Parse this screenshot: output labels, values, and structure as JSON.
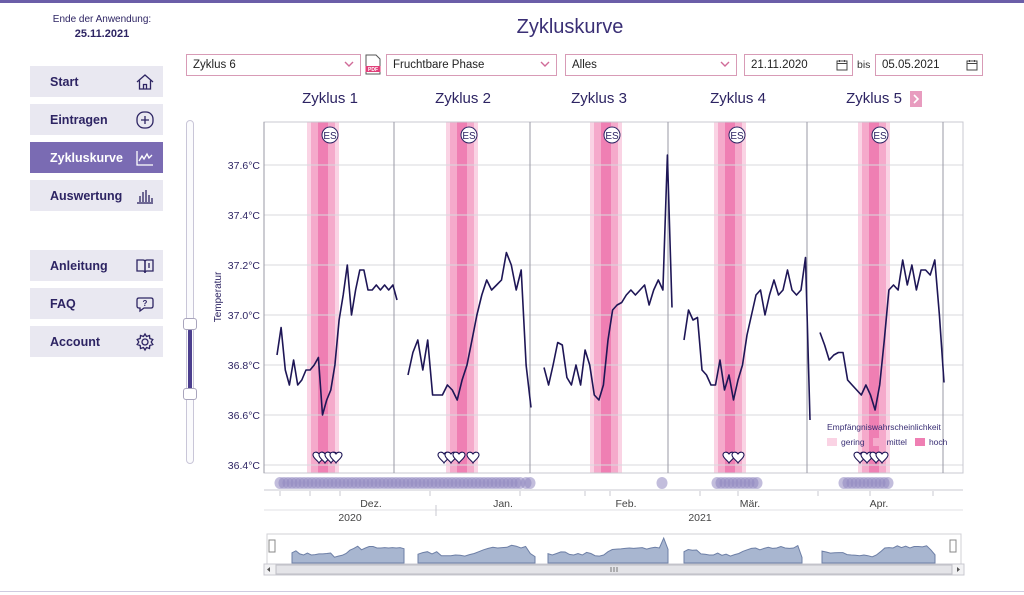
{
  "sidebar": {
    "expiry_label": "Ende der Anwendung:",
    "expiry_date": "25.11.2021",
    "items": [
      {
        "label": "Start",
        "icon": "home-icon"
      },
      {
        "label": "Eintragen",
        "icon": "plus-circle-icon"
      },
      {
        "label": "Zykluskurve",
        "icon": "chart-line-icon"
      },
      {
        "label": "Auswertung",
        "icon": "bar-chart-icon"
      },
      {
        "label": "Anleitung",
        "icon": "book-icon"
      },
      {
        "label": "FAQ",
        "icon": "question-bubble-icon"
      },
      {
        "label": "Account",
        "icon": "gear-icon"
      }
    ]
  },
  "header": {
    "title": "Zykluskurve",
    "cycle_select": "Zyklus 6",
    "phase_select": "Fruchtbare Phase",
    "filter_select": "Alles",
    "date_from": "21.11.2020",
    "bis_label": "bis",
    "date_to": "05.05.2021"
  },
  "colors": {
    "accent": "#7a6bb3",
    "curve": "#1e1656",
    "fertile_high": "#ef7fb3",
    "fertile_mid": "#f5aacb",
    "fertile_low": "#fad3e4"
  },
  "chart_data": {
    "type": "line",
    "ylabel": "Temperatur",
    "ylim": [
      36.4,
      37.8
    ],
    "yticks": [
      "36.4°C",
      "36.6°C",
      "36.8°C",
      "37.0°C",
      "37.2°C",
      "37.4°C",
      "37.6°C"
    ],
    "months": [
      "Dez.",
      "Jan.",
      "Feb.",
      "Mär.",
      "Apr."
    ],
    "years": [
      "2020",
      "2021"
    ],
    "marker_label": "ES",
    "cycles": [
      {
        "name": "Zyklus 1",
        "values": [
          36.84,
          36.95,
          36.78,
          36.72,
          36.82,
          36.72,
          36.74,
          36.78,
          36.78,
          36.8,
          36.83,
          36.6,
          36.66,
          36.7,
          36.8,
          36.98,
          37.08,
          37.2,
          37.0,
          37.1,
          37.18,
          37.18,
          37.1,
          37.1,
          37.12,
          37.1,
          37.12,
          37.1,
          37.12,
          37.06
        ]
      },
      {
        "name": "Zyklus 2",
        "values": [
          36.76,
          36.85,
          36.9,
          36.78,
          36.9,
          36.68,
          36.68,
          36.68,
          36.72,
          36.7,
          36.66,
          36.74,
          36.8,
          36.9,
          37.0,
          37.08,
          37.14,
          37.1,
          37.12,
          37.14,
          37.25,
          37.2,
          37.1,
          37.18,
          36.8,
          36.63
        ]
      },
      {
        "name": "Zyklus 3",
        "values": [
          36.79,
          36.72,
          36.8,
          36.89,
          36.88,
          36.75,
          36.72,
          36.8,
          36.72,
          36.86,
          36.8,
          36.68,
          36.66,
          36.72,
          36.9,
          37.02,
          37.04,
          37.05,
          37.08,
          37.1,
          37.08,
          37.1,
          37.12,
          37.04,
          37.1,
          37.14,
          37.1,
          37.64,
          37.03
        ]
      },
      {
        "name": "Zyklus 4",
        "values": [
          36.9,
          37.02,
          36.98,
          36.99,
          36.78,
          36.76,
          36.72,
          36.72,
          36.82,
          36.7,
          36.76,
          36.66,
          36.74,
          36.8,
          36.92,
          37.0,
          37.08,
          37.1,
          37.0,
          37.08,
          37.14,
          37.08,
          37.1,
          37.18,
          37.1,
          37.08,
          37.1,
          37.23,
          36.58
        ]
      },
      {
        "name": "Zyklus 5",
        "values": [
          36.93,
          36.88,
          36.82,
          36.84,
          36.85,
          36.85,
          36.74,
          36.72,
          36.7,
          36.68,
          36.72,
          36.68,
          36.62,
          36.72,
          36.9,
          37.1,
          37.12,
          37.1,
          37.22,
          37.12,
          37.2,
          37.1,
          37.18,
          37.18,
          37.16,
          37.22,
          37.0,
          36.73
        ]
      }
    ]
  },
  "legend": {
    "title": "Empfängniswahrscheinlichkeit",
    "items": [
      {
        "label": "gering",
        "color": "#fad3e4"
      },
      {
        "label": "mittel",
        "color": "#f5aacb"
      },
      {
        "label": "hoch",
        "color": "#ef7fb3"
      }
    ]
  }
}
